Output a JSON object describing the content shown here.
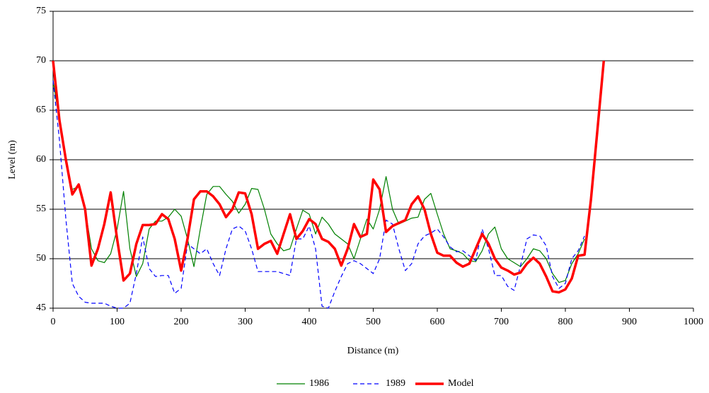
{
  "chart_data": {
    "type": "line",
    "x_label": "Distance (m)",
    "y_label": "Level (m)",
    "x": [
      0,
      10,
      20,
      30,
      40,
      50,
      60,
      70,
      80,
      90,
      100,
      110,
      120,
      130,
      140,
      150,
      160,
      170,
      180,
      190,
      200,
      210,
      220,
      230,
      240,
      250,
      260,
      270,
      280,
      290,
      300,
      310,
      320,
      330,
      340,
      350,
      360,
      370,
      380,
      390,
      400,
      410,
      420,
      430,
      440,
      450,
      460,
      470,
      480,
      490,
      500,
      510,
      520,
      530,
      540,
      550,
      560,
      570,
      580,
      590,
      600,
      610,
      620,
      630,
      640,
      650,
      660,
      670,
      680,
      690,
      700,
      710,
      720,
      730,
      740,
      750,
      760,
      770,
      780,
      790,
      800,
      810,
      820,
      830,
      840,
      850,
      860
    ],
    "series": [
      {
        "name": "1986",
        "color": "#008000",
        "width": 1.2,
        "dash": "none",
        "values": [
          68,
          64,
          60,
          57,
          57.3,
          55,
          51,
          49.8,
          49.6,
          50.5,
          53,
          56.8,
          51,
          48.2,
          49.5,
          53,
          53.8,
          53.8,
          54.2,
          55,
          54.3,
          52,
          49.2,
          53,
          56.5,
          57.3,
          57.3,
          56.5,
          55.8,
          54.6,
          55.5,
          57.1,
          57,
          55,
          52.5,
          51.5,
          50.8,
          51,
          53,
          54.9,
          54.5,
          52.5,
          54.2,
          53.5,
          52.5,
          52,
          51.5,
          50,
          52,
          54,
          53,
          55,
          58.3,
          55,
          53.5,
          53.8,
          54.1,
          54.2,
          56,
          56.6,
          54.5,
          52.5,
          51,
          50.8,
          50.5,
          49.8,
          49.7,
          50.8,
          52.5,
          53.2,
          51,
          50,
          49.6,
          49.2,
          50,
          51,
          50.8,
          50,
          48.5,
          47.6,
          47.8,
          49.5,
          50.5,
          52,
          null,
          null,
          null
        ]
      },
      {
        "name": "1989",
        "color": "#0000ff",
        "width": 1.2,
        "dash": "6 4",
        "values": [
          68,
          62,
          54,
          47.5,
          46.2,
          45.6,
          45.5,
          45.5,
          45.5,
          45.2,
          45,
          45,
          45.5,
          48.5,
          52.2,
          49,
          48.2,
          48.3,
          48.3,
          46.5,
          47,
          51.5,
          51,
          50.5,
          51,
          49.5,
          48.3,
          51,
          53,
          53.3,
          52.8,
          51,
          48.7,
          48.7,
          48.7,
          48.7,
          48.5,
          48.3,
          52,
          52,
          53.3,
          51,
          45.2,
          45,
          46.7,
          48.2,
          49.5,
          49.8,
          49.5,
          49,
          48.5,
          50,
          53.9,
          53.5,
          51,
          48.8,
          49.5,
          51.5,
          52.3,
          52.6,
          53,
          52.2,
          51.2,
          50.7,
          50.8,
          50.3,
          49.8,
          53,
          51,
          48.3,
          48.3,
          47.2,
          46.8,
          49.3,
          52,
          52.4,
          52.3,
          51.3,
          48.2,
          47,
          47.5,
          50,
          50.8,
          52.3,
          null,
          null,
          null
        ]
      },
      {
        "name": "Model",
        "color": "#ff0000",
        "width": 3.5,
        "dash": "none",
        "values": [
          70,
          64,
          60,
          56.5,
          57.5,
          55,
          49.3,
          51,
          53.5,
          56.7,
          52,
          47.8,
          48.5,
          51.5,
          53.4,
          53.4,
          53.5,
          54.5,
          54,
          52,
          48.8,
          52,
          56,
          56.8,
          56.8,
          56.3,
          55.5,
          54.2,
          55,
          56.7,
          56.6,
          54.5,
          51,
          51.5,
          51.8,
          50.5,
          52.5,
          54.5,
          52,
          52.8,
          54,
          53.5,
          52,
          51.7,
          51,
          49.3,
          51,
          53.5,
          52.2,
          52.5,
          58,
          57,
          52.7,
          53.3,
          53.6,
          53.9,
          55.5,
          56.3,
          55,
          52.5,
          50.6,
          50.3,
          50.3,
          49.6,
          49.2,
          49.5,
          51,
          52.5,
          51.5,
          50,
          49.1,
          48.8,
          48.4,
          48.6,
          49.5,
          50.1,
          49.5,
          48.2,
          46.7,
          46.6,
          46.9,
          48,
          50.3,
          50.4,
          56,
          63,
          70
        ]
      }
    ],
    "xlim": [
      0,
      1000
    ],
    "xticks": [
      0,
      100,
      200,
      300,
      400,
      500,
      600,
      700,
      800,
      900,
      1000
    ],
    "ylim": [
      45,
      75
    ],
    "yticks": [
      45,
      50,
      55,
      60,
      65,
      70,
      75
    ],
    "grid": true,
    "legend": "bottom"
  }
}
